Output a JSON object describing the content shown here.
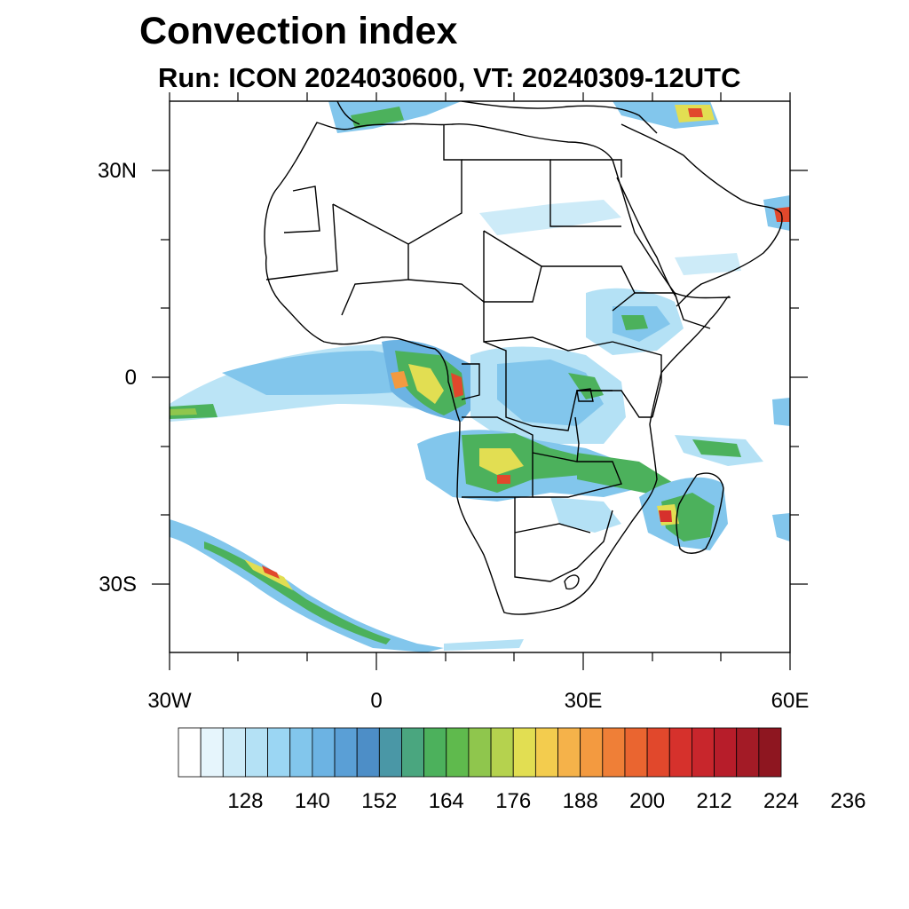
{
  "title": "Convection index",
  "subtitle": "Run: ICON 2024030600,  VT: 20240309-12UTC",
  "axes": {
    "lat_labels": [
      "30N",
      "0",
      "30S"
    ],
    "lon_labels": [
      "30W",
      "0",
      "30E",
      "60E"
    ]
  },
  "colorbar": {
    "tick_labels": [
      "128",
      "140",
      "152",
      "164",
      "176",
      "188",
      "200",
      "212",
      "224",
      "236"
    ],
    "colors": [
      "#ffffff",
      "#e6f5fc",
      "#cdebf8",
      "#b4e1f5",
      "#9bd6f3",
      "#82c6ec",
      "#6cb3e3",
      "#5a9fd6",
      "#4d8ec7",
      "#4a97a6",
      "#4aa67f",
      "#4cb15c",
      "#5fba4d",
      "#8fc64d",
      "#b5d24e",
      "#e2de52",
      "#f3cc4e",
      "#f5b24a",
      "#f39a40",
      "#ef7f37",
      "#ea6530",
      "#e1482c",
      "#d6312c",
      "#c8262c",
      "#b71d2a",
      "#a31b26",
      "#8e1620"
    ]
  },
  "colors": {
    "background": "#ffffff",
    "border": "#000000"
  }
}
